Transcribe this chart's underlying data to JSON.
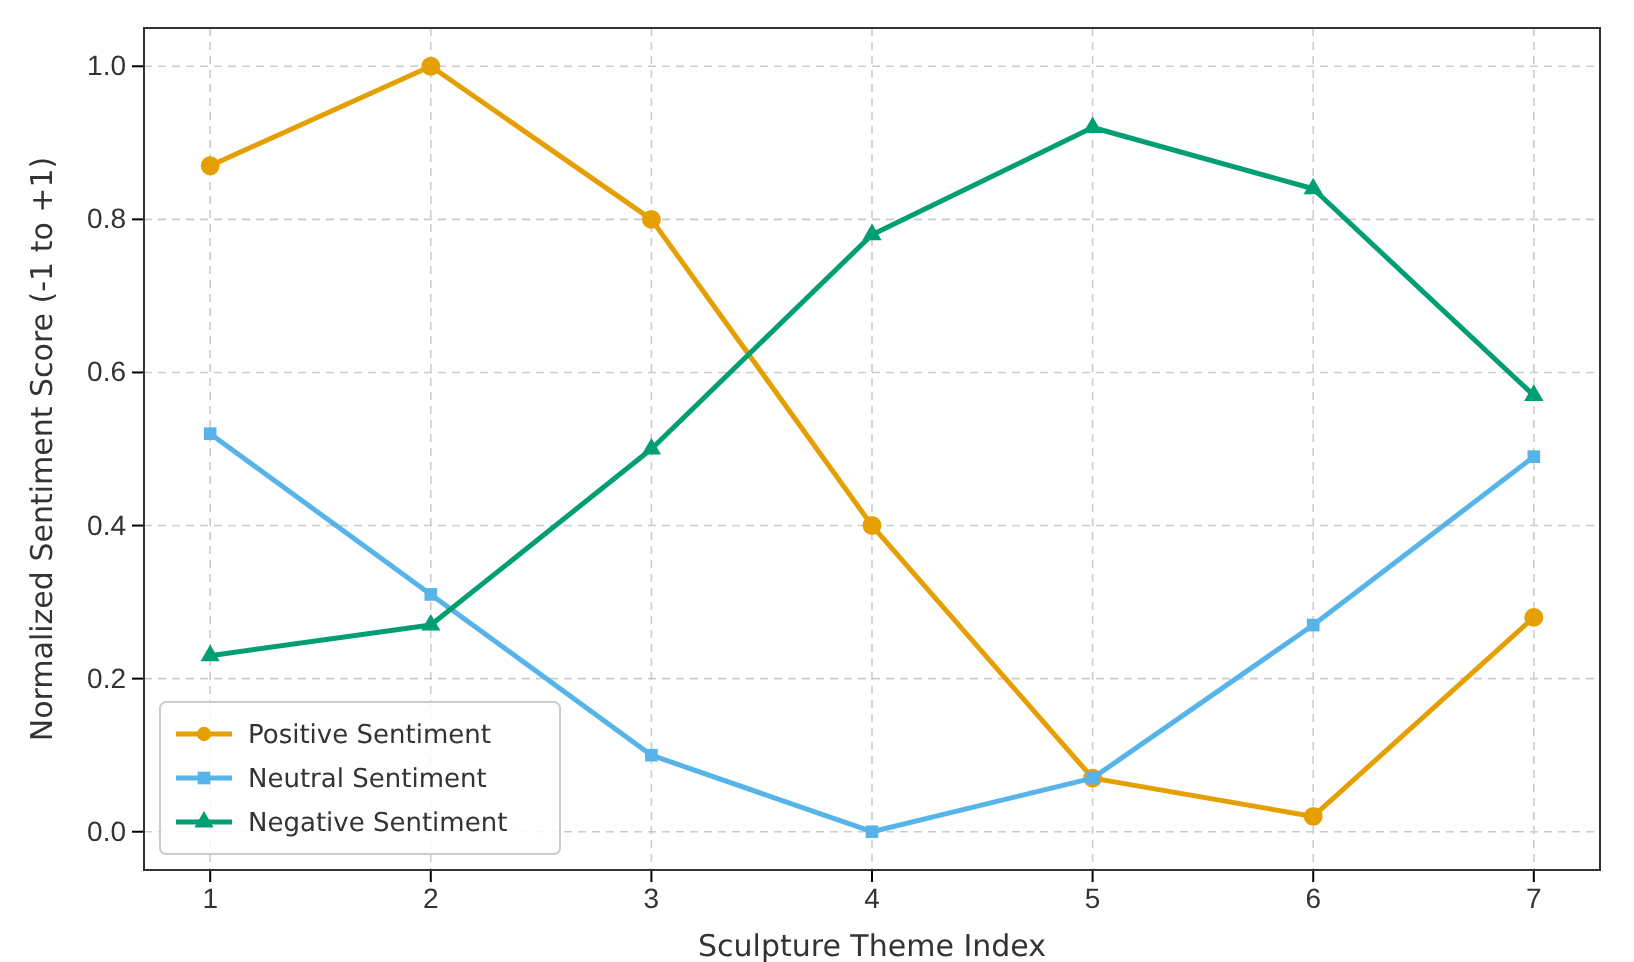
{
  "chart_data": {
    "type": "line",
    "xlabel": "Sculpture Theme Index",
    "ylabel": "Normalized Sentiment Score (-1 to +1)",
    "x": [
      1,
      2,
      3,
      4,
      5,
      6,
      7
    ],
    "series": [
      {
        "name": "Positive Sentiment",
        "color": "#e69f00",
        "marker": "circle",
        "values": [
          0.87,
          1.0,
          0.8,
          0.4,
          0.07,
          0.02,
          0.28
        ]
      },
      {
        "name": "Neutral Sentiment",
        "color": "#56b4e9",
        "marker": "square",
        "values": [
          0.52,
          0.31,
          0.1,
          0.0,
          0.07,
          0.27,
          0.49
        ]
      },
      {
        "name": "Negative Sentiment",
        "color": "#009e73",
        "marker": "triangle",
        "values": [
          0.23,
          0.27,
          0.5,
          0.78,
          0.92,
          0.84,
          0.57
        ]
      }
    ],
    "xlim": [
      0.7,
      7.3
    ],
    "ylim": [
      -0.05,
      1.05
    ],
    "xticks": [
      1,
      2,
      3,
      4,
      5,
      6,
      7
    ],
    "yticks": [
      {
        "value": 0,
        "label": "0.0"
      },
      {
        "value": 0.2,
        "label": "0.2"
      },
      {
        "value": 0.4,
        "label": "0.4"
      },
      {
        "value": 0.6,
        "label": "0.6"
      },
      {
        "value": 0.8,
        "label": "0.8"
      },
      {
        "value": 1,
        "label": "1.0"
      }
    ],
    "grid": true,
    "legend": "bottom left",
    "line_style": "solid"
  }
}
